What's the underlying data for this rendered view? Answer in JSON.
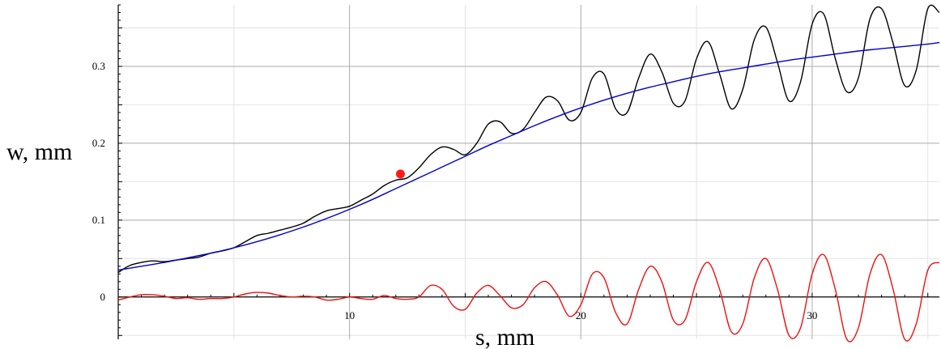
{
  "chart_data": {
    "type": "line",
    "xlabel": "s, mm",
    "ylabel": "w, mm",
    "xlim": [
      0,
      35.5
    ],
    "ylim": [
      -0.055,
      0.38
    ],
    "x_ticks": [
      10,
      20,
      30
    ],
    "y_ticks": [
      0,
      0.1,
      0.2,
      0.3
    ],
    "x_tick_labels": [
      "10",
      "20",
      "30"
    ],
    "y_tick_labels": [
      "0",
      "0.1",
      "0.2",
      "0.3"
    ],
    "grid": true,
    "legend": "none",
    "colors": {
      "measured": "#000000",
      "fit": "#0000cc",
      "residual": "#ee1111",
      "marker": "#ff1a1a",
      "grid_major": "#aaaaaa",
      "grid_minor": "#e3e3e3"
    },
    "series": [
      {
        "color": "#000000",
        "x": [
          0.0,
          0.5,
          1.0,
          1.5,
          2.0,
          2.5,
          3.0,
          3.5,
          4.0,
          4.5,
          5.0,
          5.5,
          6.0,
          6.5,
          7.0,
          7.5,
          8.0,
          8.5,
          9.0,
          9.5,
          10.0,
          10.5,
          11.0,
          11.5,
          12.0,
          12.5,
          13.0,
          13.5,
          14.0,
          14.5,
          15.0,
          15.5,
          16.0,
          16.5,
          17.0,
          17.5,
          18.0,
          18.5,
          19.0,
          19.5,
          20.0,
          20.5,
          21.0,
          21.5,
          22.0,
          22.5,
          23.0,
          23.5,
          24.0,
          24.5,
          25.0,
          25.5,
          26.0,
          26.5,
          27.0,
          27.5,
          28.0,
          28.5,
          29.0,
          29.5,
          30.0,
          30.5,
          31.0,
          31.5,
          32.0,
          32.5,
          33.0,
          33.5,
          34.0,
          34.5,
          35.0,
          35.5
        ],
        "values": [
          0.032,
          0.041,
          0.045,
          0.047,
          0.046,
          0.048,
          0.05,
          0.052,
          0.057,
          0.06,
          0.064,
          0.072,
          0.08,
          0.083,
          0.087,
          0.091,
          0.096,
          0.105,
          0.112,
          0.115,
          0.118,
          0.126,
          0.134,
          0.145,
          0.152,
          0.155,
          0.168,
          0.185,
          0.195,
          0.192,
          0.185,
          0.2,
          0.225,
          0.228,
          0.213,
          0.218,
          0.24,
          0.26,
          0.255,
          0.23,
          0.24,
          0.285,
          0.29,
          0.245,
          0.24,
          0.285,
          0.316,
          0.293,
          0.252,
          0.255,
          0.31,
          0.332,
          0.29,
          0.245,
          0.27,
          0.335,
          0.351,
          0.305,
          0.255,
          0.28,
          0.355,
          0.368,
          0.31,
          0.267,
          0.285,
          0.362,
          0.375,
          0.33,
          0.275,
          0.295,
          0.375,
          0.37
        ]
      },
      {
        "color": "#0000cc",
        "x": [
          0.0,
          1.0,
          2.0,
          3.0,
          4.0,
          5.0,
          6.0,
          7.0,
          8.0,
          9.0,
          10.0,
          11.0,
          12.0,
          13.0,
          14.0,
          15.0,
          16.0,
          17.0,
          18.0,
          19.0,
          20.0,
          21.0,
          22.0,
          23.0,
          24.0,
          25.0,
          26.0,
          27.0,
          28.0,
          29.0,
          30.0,
          31.0,
          32.0,
          33.0,
          34.0,
          35.0,
          35.5
        ],
        "values": [
          0.035,
          0.04,
          0.045,
          0.051,
          0.057,
          0.064,
          0.072,
          0.081,
          0.091,
          0.102,
          0.114,
          0.127,
          0.141,
          0.155,
          0.169,
          0.183,
          0.197,
          0.21,
          0.223,
          0.235,
          0.246,
          0.256,
          0.265,
          0.273,
          0.28,
          0.287,
          0.293,
          0.298,
          0.303,
          0.308,
          0.312,
          0.316,
          0.32,
          0.323,
          0.326,
          0.329,
          0.331
        ]
      },
      {
        "color": "#ee1111",
        "x": [
          0.0,
          0.5,
          1.0,
          1.5,
          2.0,
          2.5,
          3.0,
          3.5,
          4.0,
          4.5,
          5.0,
          5.5,
          6.0,
          6.5,
          7.0,
          7.5,
          8.0,
          8.5,
          9.0,
          9.5,
          10.0,
          10.5,
          11.0,
          11.5,
          12.0,
          12.5,
          13.0,
          13.5,
          14.0,
          14.5,
          15.0,
          15.5,
          16.0,
          16.5,
          17.0,
          17.5,
          18.0,
          18.5,
          19.0,
          19.5,
          20.0,
          20.5,
          21.0,
          21.5,
          22.0,
          22.5,
          23.0,
          23.5,
          24.0,
          24.5,
          25.0,
          25.5,
          26.0,
          26.5,
          27.0,
          27.5,
          28.0,
          28.5,
          29.0,
          29.5,
          30.0,
          30.5,
          31.0,
          31.5,
          32.0,
          32.5,
          33.0,
          33.5,
          34.0,
          34.5,
          35.0,
          35.5
        ],
        "values": [
          -0.004,
          0.0,
          0.003,
          0.003,
          0.001,
          -0.002,
          -0.001,
          -0.003,
          -0.002,
          -0.002,
          0.0,
          0.004,
          0.006,
          0.005,
          0.002,
          0.0,
          0.001,
          0.0,
          -0.004,
          -0.003,
          0.0,
          -0.002,
          -0.003,
          0.002,
          -0.002,
          -0.003,
          0.0,
          0.015,
          0.01,
          -0.012,
          -0.016,
          0.005,
          0.015,
          0.002,
          -0.014,
          -0.01,
          0.012,
          0.02,
          0.002,
          -0.025,
          -0.01,
          0.03,
          0.025,
          -0.02,
          -0.035,
          0.01,
          0.04,
          0.02,
          -0.03,
          -0.03,
          0.02,
          0.045,
          0.01,
          -0.045,
          -0.035,
          0.025,
          0.05,
          0.01,
          -0.05,
          -0.04,
          0.03,
          0.055,
          0.01,
          -0.055,
          -0.04,
          0.03,
          0.055,
          0.01,
          -0.055,
          -0.035,
          0.035,
          0.045
        ]
      },
      {
        "color": "#ff1a1a",
        "type": "scatter",
        "x": [
          12.2
        ],
        "values": [
          0.16
        ]
      }
    ]
  }
}
